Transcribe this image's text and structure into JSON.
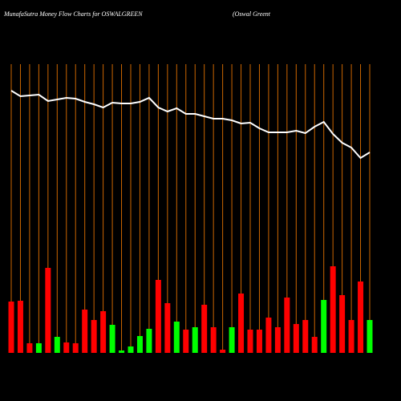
{
  "chart_data": {
    "type": "bar",
    "title": "MunafaSutra  Money Flow  Charts for OSWALGREEN",
    "subtitle": "(Oswal Greent",
    "categories": [
      null,
      null,
      null,
      null,
      null,
      null,
      null,
      null,
      null,
      null,
      null,
      null,
      null,
      null,
      null,
      null,
      null,
      null,
      null,
      null,
      null,
      null,
      null,
      null,
      null,
      null,
      null,
      null,
      null,
      null,
      null,
      null,
      null,
      null,
      null,
      null,
      null,
      null,
      null,
      null
    ],
    "values": [
      64,
      65,
      12,
      12,
      106,
      20,
      13,
      12,
      54,
      41,
      52,
      35,
      3,
      8,
      21,
      30,
      91,
      62,
      39,
      29,
      32,
      60,
      32,
      4,
      32,
      74,
      29,
      29,
      44,
      32,
      69,
      36,
      41,
      20,
      66,
      108,
      72,
      41,
      89,
      41
    ],
    "bar_colors": [
      "#ff0000",
      "#ff0000",
      "#ff0000",
      "#00ff00",
      "#ff0000",
      "#00ff00",
      "#ff0000",
      "#ff0000",
      "#ff0000",
      "#ff0000",
      "#ff0000",
      "#00ff00",
      "#00ff00",
      "#00ff00",
      "#00ff00",
      "#00ff00",
      "#ff0000",
      "#ff0000",
      "#00ff00",
      "#ff0000",
      "#00ff00",
      "#ff0000",
      "#ff0000",
      "#ff0000",
      "#00ff00",
      "#ff0000",
      "#ff0000",
      "#ff0000",
      "#ff0000",
      "#ff0000",
      "#ff0000",
      "#ff0000",
      "#ff0000",
      "#ff0000",
      "#00ff00",
      "#ff0000",
      "#ff0000",
      "#ff0000",
      "#ff0000",
      "#00ff00"
    ],
    "line_values": [
      327,
      320,
      321,
      322,
      314,
      316,
      318,
      317,
      313,
      310,
      306,
      312,
      311,
      311,
      313,
      318,
      306,
      301,
      305,
      298,
      298,
      295,
      292,
      292,
      290,
      286,
      287,
      280,
      275,
      275,
      275,
      277,
      274,
      282,
      288,
      273,
      262,
      256,
      243,
      250
    ],
    "line_color": "#ffffff",
    "grid_color": "#cc6600",
    "ylim": [
      0,
      360
    ]
  }
}
